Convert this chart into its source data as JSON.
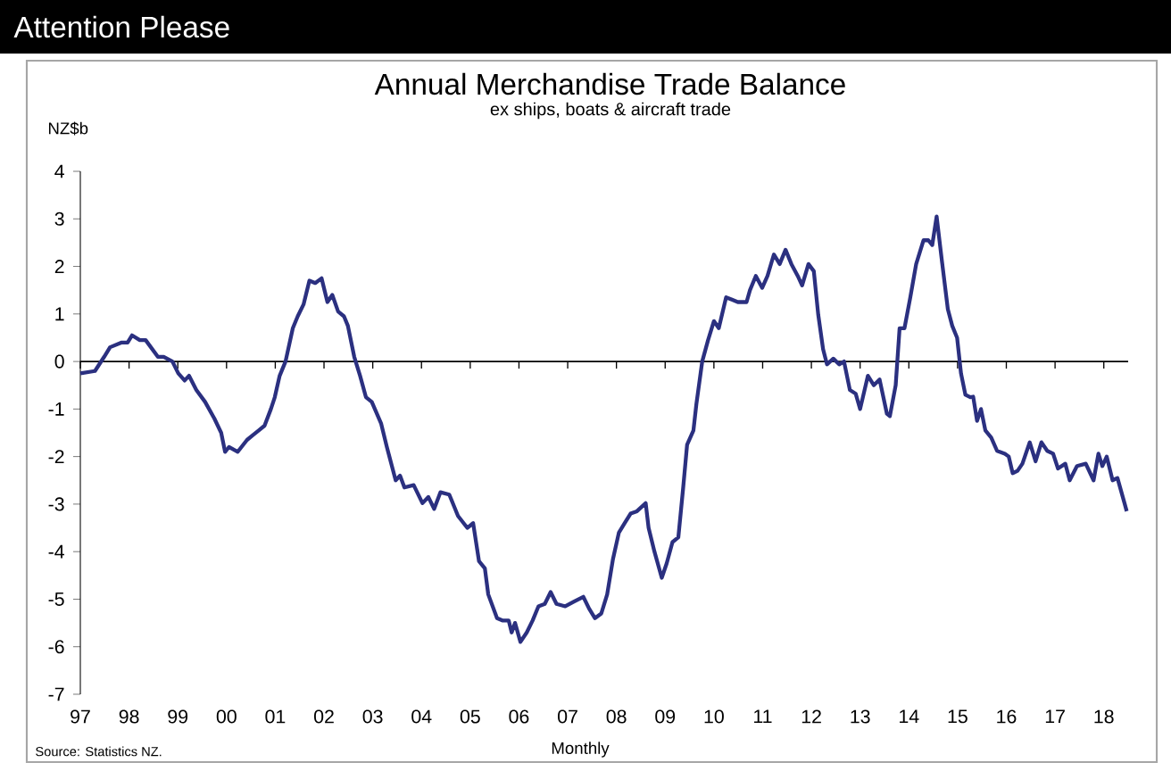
{
  "chart_data": {
    "type": "line",
    "title": "Annual Merchandise Trade Balance",
    "subtitle": "ex ships, boats & aircraft trade",
    "xlabel": "Monthly",
    "ylabel": "NZ$b",
    "annotations": [
      "Attention Please",
      "Source: Statistics NZ."
    ],
    "xlim": [
      1997,
      2018.5
    ],
    "ylim": [
      -7,
      4
    ],
    "xticks": [
      {
        "value": 1997,
        "label": "97"
      },
      {
        "value": 1998,
        "label": "98"
      },
      {
        "value": 1999,
        "label": "99"
      },
      {
        "value": 2000,
        "label": "00"
      },
      {
        "value": 2001,
        "label": "01"
      },
      {
        "value": 2002,
        "label": "02"
      },
      {
        "value": 2003,
        "label": "03"
      },
      {
        "value": 2004,
        "label": "04"
      },
      {
        "value": 2005,
        "label": "05"
      },
      {
        "value": 2006,
        "label": "06"
      },
      {
        "value": 2007,
        "label": "07"
      },
      {
        "value": 2008,
        "label": "08"
      },
      {
        "value": 2009,
        "label": "09"
      },
      {
        "value": 2010,
        "label": "10"
      },
      {
        "value": 2011,
        "label": "11"
      },
      {
        "value": 2012,
        "label": "12"
      },
      {
        "value": 2013,
        "label": "13"
      },
      {
        "value": 2014,
        "label": "14"
      },
      {
        "value": 2015,
        "label": "15"
      },
      {
        "value": 2016,
        "label": "16"
      },
      {
        "value": 2017,
        "label": "17"
      },
      {
        "value": 2018,
        "label": "18"
      }
    ],
    "yticks": [
      -7,
      -6,
      -5,
      -4,
      -3,
      -2,
      -1,
      0,
      1,
      2,
      3,
      4
    ],
    "ref_lines": [
      {
        "axis": "y",
        "value": 0,
        "color": "#000000"
      }
    ],
    "grid": false,
    "marker": "none",
    "line_style": "solid",
    "series": [
      {
        "color": "#2b3080",
        "x": [
          1997.0,
          1997.3,
          1997.49,
          1997.61,
          1997.85,
          1997.97,
          1998.06,
          1998.22,
          1998.34,
          1998.59,
          1998.71,
          1998.89,
          1999.01,
          1999.14,
          1999.23,
          1999.38,
          1999.56,
          1999.75,
          1999.89,
          1999.97,
          2000.05,
          2000.14,
          2000.23,
          2000.42,
          2000.54,
          2000.66,
          2000.78,
          2000.91,
          2000.99,
          2001.09,
          2001.21,
          2001.36,
          2001.46,
          2001.58,
          2001.7,
          2001.82,
          2001.95,
          2002.07,
          2002.17,
          2002.29,
          2002.41,
          2002.49,
          2002.62,
          2002.74,
          2002.86,
          2002.98,
          2003.17,
          2003.29,
          2003.47,
          2003.56,
          2003.65,
          2003.84,
          2004.02,
          2004.14,
          2004.26,
          2004.39,
          2004.57,
          2004.75,
          2004.94,
          2005.06,
          2005.18,
          2005.3,
          2005.37,
          2005.55,
          2005.67,
          2005.79,
          2005.85,
          2005.92,
          2006.03,
          2006.16,
          2006.28,
          2006.4,
          2006.53,
          2006.65,
          2006.77,
          2006.95,
          2007.13,
          2007.32,
          2007.44,
          2007.56,
          2007.69,
          2007.81,
          2007.93,
          2008.05,
          2008.17,
          2008.29,
          2008.42,
          2008.6,
          2008.66,
          2008.78,
          2008.93,
          2009.03,
          2009.15,
          2009.27,
          2009.37,
          2009.45,
          2009.58,
          2009.64,
          2009.76,
          2009.88,
          2010.0,
          2010.1,
          2010.25,
          2010.37,
          2010.49,
          2010.67,
          2010.74,
          2010.86,
          2010.99,
          2011.1,
          2011.23,
          2011.35,
          2011.47,
          2011.59,
          2011.72,
          2011.81,
          2011.94,
          2012.05,
          2012.14,
          2012.24,
          2012.32,
          2012.45,
          2012.57,
          2012.67,
          2012.79,
          2012.91,
          2013.0,
          2013.16,
          2013.28,
          2013.4,
          2013.55,
          2013.61,
          2013.73,
          2013.81,
          2013.91,
          2014.03,
          2014.15,
          2014.3,
          2014.4,
          2014.48,
          2014.57,
          2014.68,
          2014.8,
          2014.89,
          2014.99,
          2015.07,
          2015.16,
          2015.26,
          2015.32,
          2015.4,
          2015.48,
          2015.57,
          2015.69,
          2015.81,
          2015.97,
          2016.05,
          2016.13,
          2016.23,
          2016.33,
          2016.48,
          2016.6,
          2016.72,
          2016.84,
          2016.96,
          2017.06,
          2017.21,
          2017.3,
          2017.45,
          2017.63,
          2017.79,
          2017.89,
          2017.97,
          2018.06,
          2018.18,
          2018.28,
          2018.43,
          2018.47
        ],
        "values": [
          -0.25,
          -0.2,
          0.1,
          0.3,
          0.4,
          0.4,
          0.55,
          0.45,
          0.45,
          0.1,
          0.1,
          0.0,
          -0.25,
          -0.4,
          -0.3,
          -0.6,
          -0.85,
          -1.2,
          -1.5,
          -1.9,
          -1.8,
          -1.85,
          -1.9,
          -1.65,
          -1.55,
          -1.45,
          -1.35,
          -1.0,
          -0.75,
          -0.3,
          0.0,
          0.7,
          0.95,
          1.2,
          1.7,
          1.65,
          1.75,
          1.25,
          1.4,
          1.05,
          0.95,
          0.75,
          0.1,
          -0.3,
          -0.75,
          -0.85,
          -1.3,
          -1.8,
          -2.5,
          -2.4,
          -2.65,
          -2.6,
          -2.98,
          -2.85,
          -3.1,
          -2.75,
          -2.8,
          -3.25,
          -3.5,
          -3.4,
          -4.2,
          -4.35,
          -4.9,
          -5.4,
          -5.45,
          -5.45,
          -5.7,
          -5.5,
          -5.9,
          -5.7,
          -5.45,
          -5.15,
          -5.1,
          -4.85,
          -5.1,
          -5.15,
          -5.05,
          -4.95,
          -5.2,
          -5.4,
          -5.3,
          -4.9,
          -4.15,
          -3.6,
          -3.4,
          -3.2,
          -3.15,
          -2.98,
          -3.5,
          -4.0,
          -4.55,
          -4.25,
          -3.8,
          -3.7,
          -2.65,
          -1.75,
          -1.45,
          -0.9,
          0.0,
          0.45,
          0.85,
          0.7,
          1.35,
          1.3,
          1.25,
          1.25,
          1.5,
          1.8,
          1.55,
          1.8,
          2.25,
          2.05,
          2.35,
          2.05,
          1.8,
          1.6,
          2.05,
          1.9,
          0.99,
          0.26,
          -0.06,
          0.06,
          -0.06,
          0.0,
          -0.6,
          -0.68,
          -1.0,
          -0.3,
          -0.5,
          -0.38,
          -1.1,
          -1.15,
          -0.5,
          0.7,
          0.7,
          1.35,
          2.05,
          2.55,
          2.55,
          2.45,
          3.05,
          2.1,
          1.1,
          0.75,
          0.5,
          -0.25,
          -0.7,
          -0.75,
          -0.74,
          -1.25,
          -1.0,
          -1.45,
          -1.6,
          -1.88,
          -1.94,
          -2.0,
          -2.35,
          -2.3,
          -2.15,
          -1.7,
          -2.1,
          -1.7,
          -1.88,
          -1.94,
          -2.25,
          -2.15,
          -2.5,
          -2.2,
          -2.15,
          -2.5,
          -1.94,
          -2.2,
          -2.0,
          -2.5,
          -2.45,
          -3.0,
          -3.15
        ]
      }
    ]
  }
}
